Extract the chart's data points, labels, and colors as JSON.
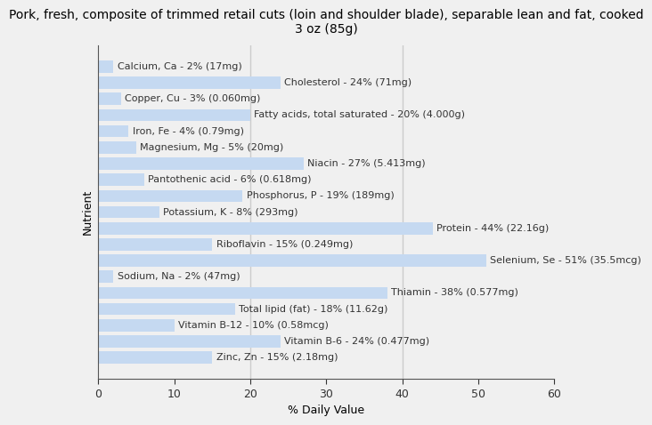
{
  "title": "Pork, fresh, composite of trimmed retail cuts (loin and shoulder blade), separable lean and fat, cooked\n3 oz (85g)",
  "xlabel": "% Daily Value",
  "ylabel": "Nutrient",
  "nutrients": [
    "Zinc, Zn - 15% (2.18mg)",
    "Vitamin B-6 - 24% (0.477mg)",
    "Vitamin B-12 - 10% (0.58mcg)",
    "Total lipid (fat) - 18% (11.62g)",
    "Thiamin - 38% (0.577mg)",
    "Sodium, Na - 2% (47mg)",
    "Selenium, Se - 51% (35.5mcg)",
    "Riboflavin - 15% (0.249mg)",
    "Protein - 44% (22.16g)",
    "Potassium, K - 8% (293mg)",
    "Phosphorus, P - 19% (189mg)",
    "Pantothenic acid - 6% (0.618mg)",
    "Niacin - 27% (5.413mg)",
    "Magnesium, Mg - 5% (20mg)",
    "Iron, Fe - 4% (0.79mg)",
    "Fatty acids, total saturated - 20% (4.000g)",
    "Copper, Cu - 3% (0.060mg)",
    "Cholesterol - 24% (71mg)",
    "Calcium, Ca - 2% (17mg)"
  ],
  "values": [
    15,
    24,
    10,
    18,
    38,
    2,
    51,
    15,
    44,
    8,
    19,
    6,
    27,
    5,
    4,
    20,
    3,
    24,
    2
  ],
  "bar_color": "#c5d9f1",
  "background_color": "#f0f0f0",
  "plot_bg_color": "#f0f0f0",
  "xlim": [
    0,
    60
  ],
  "xticks": [
    0,
    10,
    20,
    30,
    40,
    50,
    60
  ],
  "vlines": [
    20,
    40
  ],
  "title_fontsize": 10,
  "axis_label_fontsize": 9,
  "tick_fontsize": 9,
  "bar_label_fontsize": 8,
  "bar_label_color": "#333333",
  "bar_height": 0.75
}
